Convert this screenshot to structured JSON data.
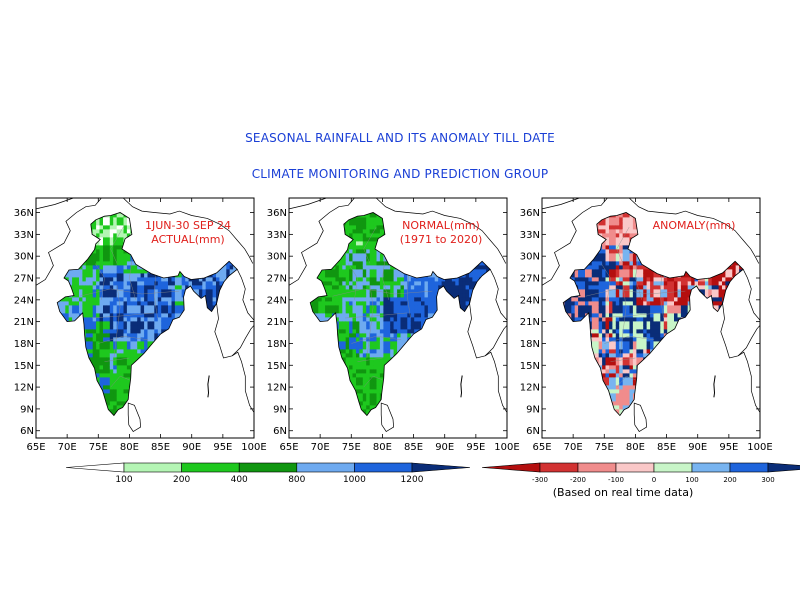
{
  "title": "SEASONAL RAINFALL AND ITS ANOMALY TILL DATE",
  "subtitle": "CLIMATE MONITORING AND PREDICTION GROUP",
  "map": {
    "lon_ticks": [
      "65E",
      "70E",
      "75E",
      "80E",
      "85E",
      "90E",
      "95E",
      "100E"
    ],
    "lat_ticks": [
      "36N",
      "33N",
      "30N",
      "27N",
      "24N",
      "21N",
      "18N",
      "15N",
      "12N",
      "9N",
      "6N"
    ],
    "panels": [
      {
        "label_lines": [
          "1JUN-30 SEP 24",
          "ACTUAL(mm)"
        ],
        "scheme": "rainfall"
      },
      {
        "label_lines": [
          "NORMAL(mm)",
          "(1971 to 2020)"
        ],
        "scheme": "rainfall"
      },
      {
        "label_lines": [
          "ANOMALY(mm)"
        ],
        "scheme": "anomaly"
      }
    ]
  },
  "legend_rainfall": {
    "colors": [
      "#ffffff",
      "#b4f5b4",
      "#1ec81e",
      "#109610",
      "#6eaaf0",
      "#1e64dc",
      "#0a2d78"
    ],
    "labels": [
      "100",
      "200",
      "400",
      "800",
      "1000",
      "1200"
    ]
  },
  "legend_anomaly": {
    "colors": [
      "#b40f0f",
      "#d23232",
      "#f08c8c",
      "#fac8c8",
      "#c8f5c8",
      "#78b4f0",
      "#1e64dc",
      "#0a2d78"
    ],
    "labels": [
      "-300",
      "-200",
      "-100",
      "0",
      "100",
      "200",
      "300"
    ],
    "note": "(Based on real time data)"
  },
  "colors": {
    "title": "#1a3fd6",
    "panel_label": "#e0201c"
  }
}
